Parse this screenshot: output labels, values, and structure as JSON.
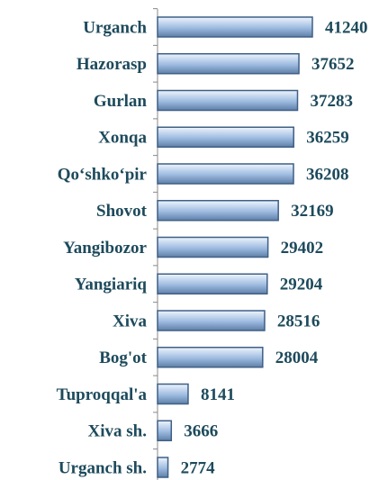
{
  "chart_data": {
    "type": "bar",
    "categories": [
      "Urganch",
      "Hazorasp",
      "Gurlan",
      "Xonqa",
      "Qo‘shko‘pir",
      "Shovot",
      "Yangibozor",
      "Yangiariq",
      "Xiva",
      "Bog'ot",
      "Tuproqqal'a",
      "Xiva sh.",
      "Urganch sh."
    ],
    "values": [
      41240,
      37652,
      37283,
      36259,
      36208,
      32169,
      29402,
      29204,
      28516,
      28004,
      8141,
      3666,
      2774
    ],
    "color": "#9dbbe0"
  }
}
